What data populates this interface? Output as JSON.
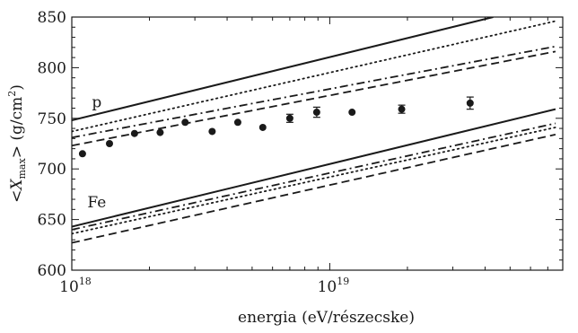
{
  "chart_data": {
    "type": "line",
    "xlabel": "energia (eV/részecske)",
    "ylabel_parts": {
      "open": "<",
      "var": "X",
      "sub": "max",
      "close": "> (g/cm",
      "sup": "2",
      "end": ")"
    },
    "x_scale": "log",
    "xlim": [
      1e+18,
      8e+19
    ],
    "ylim": [
      600,
      850
    ],
    "x_tick_labels": [
      {
        "value": 1e+18,
        "base": "10",
        "exp": "18"
      },
      {
        "value": 1e+19,
        "base": "10",
        "exp": "19"
      }
    ],
    "y_ticks": [
      600,
      650,
      700,
      750,
      800,
      850
    ],
    "y_tick_labels": [
      "600",
      "650",
      "700",
      "750",
      "800",
      "850"
    ],
    "annotations": [
      {
        "text": "p",
        "x": 1.25e+18,
        "y": 761
      },
      {
        "text": "Fe",
        "x": 1.25e+18,
        "y": 662
      }
    ],
    "series": [
      {
        "group": "p",
        "style": "solid",
        "points": [
          [
            1e+18,
            748
          ],
          [
            4.3e+19,
            850
          ]
        ]
      },
      {
        "group": "p",
        "style": "dotted",
        "points": [
          [
            1e+18,
            737
          ],
          [
            7.5e+19,
            846
          ]
        ]
      },
      {
        "group": "p",
        "style": "dashdot",
        "points": [
          [
            1e+18,
            731
          ],
          [
            7.5e+19,
            821
          ]
        ]
      },
      {
        "group": "p",
        "style": "dashed",
        "points": [
          [
            1e+18,
            723
          ],
          [
            7.5e+19,
            816
          ]
        ]
      },
      {
        "group": "Fe",
        "style": "solid",
        "points": [
          [
            1e+18,
            643
          ],
          [
            7.5e+19,
            759
          ]
        ]
      },
      {
        "group": "Fe",
        "style": "dashdot",
        "points": [
          [
            1e+18,
            640
          ],
          [
            7.5e+19,
            745
          ]
        ]
      },
      {
        "group": "Fe",
        "style": "dotted",
        "points": [
          [
            1e+18,
            636
          ],
          [
            7.5e+19,
            741
          ]
        ]
      },
      {
        "group": "Fe",
        "style": "dashed",
        "points": [
          [
            1e+18,
            627
          ],
          [
            7.5e+19,
            734
          ]
        ]
      }
    ],
    "data_points": [
      {
        "x": 1.1e+18,
        "y": 715,
        "err": 0
      },
      {
        "x": 1.4e+18,
        "y": 725,
        "err": 0
      },
      {
        "x": 1.75e+18,
        "y": 735,
        "err": 0
      },
      {
        "x": 2.2e+18,
        "y": 736,
        "err": 0
      },
      {
        "x": 2.75e+18,
        "y": 746,
        "err": 0
      },
      {
        "x": 3.5e+18,
        "y": 737,
        "err": 0
      },
      {
        "x": 4.4e+18,
        "y": 746,
        "err": 0
      },
      {
        "x": 5.5e+18,
        "y": 741,
        "err": 0
      },
      {
        "x": 7e+18,
        "y": 750,
        "err": 4
      },
      {
        "x": 8.9e+18,
        "y": 756,
        "err": 5
      },
      {
        "x": 1.22e+19,
        "y": 756,
        "err": 0
      },
      {
        "x": 1.9e+19,
        "y": 759,
        "err": 4
      },
      {
        "x": 3.5e+19,
        "y": 765,
        "err": 6
      }
    ]
  }
}
